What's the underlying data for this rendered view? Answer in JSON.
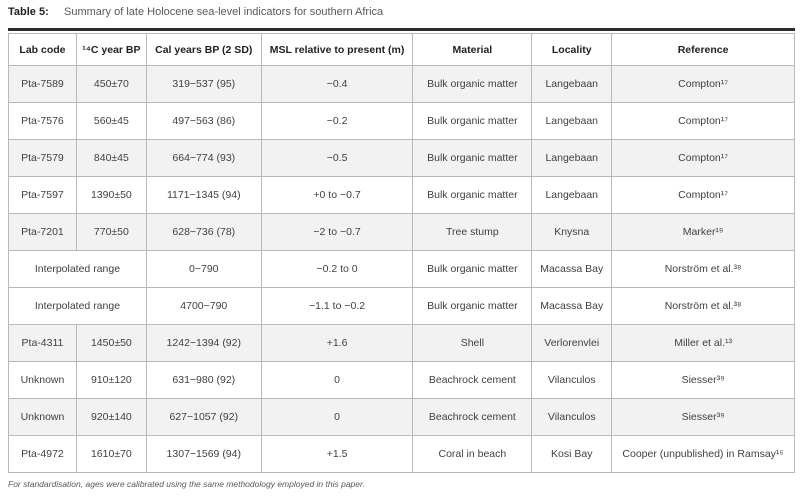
{
  "title": {
    "label": "Table 5:",
    "text": "Summary of late Holocene sea-level indicators for southern Africa"
  },
  "table": {
    "headers": [
      "Lab code",
      "¹⁴C year BP",
      "Cal years BP (2 SD)",
      "MSL relative to present (m)",
      "Material",
      "Locality",
      "Reference"
    ],
    "rows": [
      {
        "shaded": true,
        "cells": [
          {
            "text": "Pta-7589",
            "colspan": 1
          },
          {
            "text": "450±70",
            "colspan": 1
          },
          {
            "text": "319−537 (95)",
            "colspan": 1
          },
          {
            "text": "−0.4",
            "colspan": 1
          },
          {
            "text": "Bulk organic matter",
            "colspan": 1
          },
          {
            "text": "Langebaan",
            "colspan": 1
          },
          {
            "text": "Compton¹⁷",
            "colspan": 1
          }
        ]
      },
      {
        "shaded": false,
        "cells": [
          {
            "text": "Pta-7576",
            "colspan": 1
          },
          {
            "text": "560±45",
            "colspan": 1
          },
          {
            "text": "497−563 (86)",
            "colspan": 1
          },
          {
            "text": "−0.2",
            "colspan": 1
          },
          {
            "text": "Bulk organic matter",
            "colspan": 1
          },
          {
            "text": "Langebaan",
            "colspan": 1
          },
          {
            "text": "Compton¹⁷",
            "colspan": 1
          }
        ]
      },
      {
        "shaded": true,
        "cells": [
          {
            "text": "Pta-7579",
            "colspan": 1
          },
          {
            "text": "840±45",
            "colspan": 1
          },
          {
            "text": "664−774 (93)",
            "colspan": 1
          },
          {
            "text": "−0.5",
            "colspan": 1
          },
          {
            "text": "Bulk organic matter",
            "colspan": 1
          },
          {
            "text": "Langebaan",
            "colspan": 1
          },
          {
            "text": "Compton¹⁷",
            "colspan": 1
          }
        ]
      },
      {
        "shaded": false,
        "cells": [
          {
            "text": "Pta-7597",
            "colspan": 1
          },
          {
            "text": "1390±50",
            "colspan": 1
          },
          {
            "text": "1171−1345 (94)",
            "colspan": 1
          },
          {
            "text": "+0 to −0.7",
            "colspan": 1
          },
          {
            "text": "Bulk organic matter",
            "colspan": 1
          },
          {
            "text": "Langebaan",
            "colspan": 1
          },
          {
            "text": "Compton¹⁷",
            "colspan": 1
          }
        ]
      },
      {
        "shaded": true,
        "cells": [
          {
            "text": "Pta-7201",
            "colspan": 1
          },
          {
            "text": "770±50",
            "colspan": 1
          },
          {
            "text": "628−736 (78)",
            "colspan": 1
          },
          {
            "text": "−2 to −0.7",
            "colspan": 1
          },
          {
            "text": "Tree stump",
            "colspan": 1
          },
          {
            "text": "Knysna",
            "colspan": 1
          },
          {
            "text": "Marker¹⁹",
            "colspan": 1
          }
        ]
      },
      {
        "shaded": false,
        "cells": [
          {
            "text": "Interpolated range",
            "colspan": 2
          },
          {
            "text": "0−790",
            "colspan": 1
          },
          {
            "text": "−0.2 to 0",
            "colspan": 1
          },
          {
            "text": "Bulk organic matter",
            "colspan": 1
          },
          {
            "text": "Macassa Bay",
            "colspan": 1
          },
          {
            "text": "Norström et al.³⁸",
            "colspan": 1
          }
        ]
      },
      {
        "shaded": false,
        "cells": [
          {
            "text": "Interpolated range",
            "colspan": 2
          },
          {
            "text": "4700−790",
            "colspan": 1
          },
          {
            "text": "−1.1 to −0.2",
            "colspan": 1
          },
          {
            "text": "Bulk organic matter",
            "colspan": 1
          },
          {
            "text": "Macassa Bay",
            "colspan": 1
          },
          {
            "text": "Norström et al.³⁸",
            "colspan": 1
          }
        ]
      },
      {
        "shaded": true,
        "cells": [
          {
            "text": "Pta-4311",
            "colspan": 1
          },
          {
            "text": "1450±50",
            "colspan": 1
          },
          {
            "text": "1242−1394 (92)",
            "colspan": 1
          },
          {
            "text": "+1.6",
            "colspan": 1
          },
          {
            "text": "Shell",
            "colspan": 1
          },
          {
            "text": "Verlorenvlei",
            "colspan": 1
          },
          {
            "text": "Miller et al.¹³",
            "colspan": 1
          }
        ]
      },
      {
        "shaded": false,
        "cells": [
          {
            "text": "Unknown",
            "colspan": 1
          },
          {
            "text": "910±120",
            "colspan": 1
          },
          {
            "text": "631−980 (92)",
            "colspan": 1
          },
          {
            "text": "0",
            "colspan": 1
          },
          {
            "text": "Beachrock cement",
            "colspan": 1
          },
          {
            "text": "Vilanculos",
            "colspan": 1
          },
          {
            "text": "Siesser³⁹",
            "colspan": 1
          }
        ]
      },
      {
        "shaded": true,
        "cells": [
          {
            "text": "Unknown",
            "colspan": 1
          },
          {
            "text": "920±140",
            "colspan": 1
          },
          {
            "text": "627−1057 (92)",
            "colspan": 1
          },
          {
            "text": "0",
            "colspan": 1
          },
          {
            "text": "Beachrock cement",
            "colspan": 1
          },
          {
            "text": "Vilanculos",
            "colspan": 1
          },
          {
            "text": "Siesser³⁹",
            "colspan": 1
          }
        ]
      },
      {
        "shaded": false,
        "cells": [
          {
            "text": "Pta-4972",
            "colspan": 1
          },
          {
            "text": "1610±70",
            "colspan": 1
          },
          {
            "text": "1307−1569 (94)",
            "colspan": 1
          },
          {
            "text": "+1.5",
            "colspan": 1
          },
          {
            "text": "Coral in beach",
            "colspan": 1
          },
          {
            "text": "Kosi Bay",
            "colspan": 1
          },
          {
            "text": "Cooper (unpublished) in Ramsay¹⁵",
            "colspan": 1
          }
        ]
      }
    ]
  },
  "footnote": "For standardisation, ages were calibrated using the same methodology employed in this paper."
}
